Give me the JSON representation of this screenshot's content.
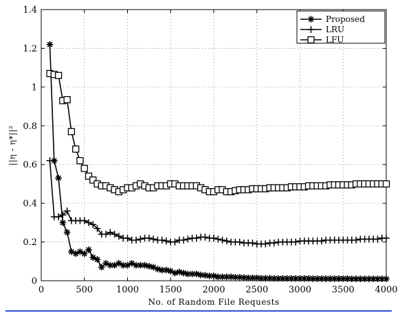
{
  "chart_data": {
    "type": "line",
    "title": "",
    "xlabel": "No. of Random File Requests",
    "ylabel": "||η - η*||²",
    "xlim": [
      0,
      4000
    ],
    "ylim": [
      0,
      1.4
    ],
    "xticks": [
      0,
      500,
      1000,
      1500,
      2000,
      2500,
      3000,
      3500,
      4000
    ],
    "yticks": [
      0,
      0.2,
      0.4,
      0.6,
      0.8,
      1,
      1.2,
      1.4
    ],
    "xtick_labels": [
      "0",
      "500",
      "1000",
      "1500",
      "2000",
      "2500",
      "3000",
      "3500",
      "4000"
    ],
    "ytick_labels": [
      "0",
      "0.2",
      "0.4",
      "0.6",
      "0.8",
      "1",
      "1.2",
      "1.4"
    ],
    "grid": true,
    "legend_position": "top-right",
    "series": [
      {
        "name": "Proposed",
        "marker": "star",
        "x": [
          100,
          150,
          200,
          250,
          300,
          350,
          400,
          450,
          500,
          550,
          600,
          650,
          700,
          750,
          800,
          850,
          900,
          950,
          1000,
          1050,
          1100,
          1150,
          1200,
          1250,
          1300,
          1350,
          1400,
          1450,
          1500,
          1550,
          1600,
          1650,
          1700,
          1750,
          1800,
          1850,
          1900,
          1950,
          2000,
          2050,
          2100,
          2150,
          2200,
          2250,
          2300,
          2350,
          2400,
          2450,
          2500,
          2550,
          2600,
          2650,
          2700,
          2750,
          2800,
          2850,
          2900,
          2950,
          3000,
          3050,
          3100,
          3150,
          3200,
          3250,
          3300,
          3350,
          3400,
          3450,
          3500,
          3550,
          3600,
          3650,
          3700,
          3750,
          3800,
          3850,
          3900,
          3950,
          4000
        ],
        "y": [
          1.22,
          0.62,
          0.53,
          0.3,
          0.25,
          0.15,
          0.14,
          0.15,
          0.14,
          0.16,
          0.12,
          0.11,
          0.07,
          0.09,
          0.08,
          0.08,
          0.09,
          0.08,
          0.08,
          0.09,
          0.08,
          0.08,
          0.08,
          0.075,
          0.07,
          0.06,
          0.055,
          0.055,
          0.05,
          0.04,
          0.045,
          0.04,
          0.035,
          0.035,
          0.035,
          0.03,
          0.028,
          0.025,
          0.025,
          0.02,
          0.02,
          0.02,
          0.02,
          0.018,
          0.018,
          0.016,
          0.015,
          0.015,
          0.015,
          0.013,
          0.013,
          0.013,
          0.012,
          0.012,
          0.012,
          0.012,
          0.012,
          0.012,
          0.012,
          0.012,
          0.012,
          0.011,
          0.011,
          0.011,
          0.011,
          0.011,
          0.011,
          0.011,
          0.011,
          0.011,
          0.01,
          0.01,
          0.01,
          0.01,
          0.01,
          0.01,
          0.01,
          0.01,
          0.01
        ]
      },
      {
        "name": "LRU",
        "marker": "plus",
        "x": [
          100,
          150,
          200,
          250,
          300,
          350,
          400,
          450,
          500,
          550,
          600,
          650,
          700,
          750,
          800,
          850,
          900,
          950,
          1000,
          1050,
          1100,
          1150,
          1200,
          1250,
          1300,
          1350,
          1400,
          1450,
          1500,
          1550,
          1600,
          1650,
          1700,
          1750,
          1800,
          1850,
          1900,
          1950,
          2000,
          2050,
          2100,
          2150,
          2200,
          2250,
          2300,
          2350,
          2400,
          2450,
          2500,
          2550,
          2600,
          2650,
          2700,
          2750,
          2800,
          2850,
          2900,
          2950,
          3000,
          3050,
          3100,
          3150,
          3200,
          3250,
          3300,
          3350,
          3400,
          3450,
          3500,
          3550,
          3600,
          3650,
          3700,
          3750,
          3800,
          3850,
          3900,
          3950,
          4000
        ],
        "y": [
          0.62,
          0.33,
          0.33,
          0.34,
          0.36,
          0.31,
          0.31,
          0.31,
          0.31,
          0.3,
          0.29,
          0.27,
          0.24,
          0.24,
          0.25,
          0.24,
          0.23,
          0.22,
          0.22,
          0.21,
          0.21,
          0.215,
          0.22,
          0.22,
          0.215,
          0.21,
          0.21,
          0.205,
          0.2,
          0.2,
          0.21,
          0.21,
          0.215,
          0.22,
          0.22,
          0.225,
          0.225,
          0.22,
          0.22,
          0.215,
          0.21,
          0.205,
          0.2,
          0.2,
          0.2,
          0.195,
          0.195,
          0.195,
          0.19,
          0.19,
          0.19,
          0.195,
          0.195,
          0.2,
          0.2,
          0.2,
          0.2,
          0.2,
          0.205,
          0.205,
          0.205,
          0.205,
          0.205,
          0.205,
          0.21,
          0.21,
          0.21,
          0.21,
          0.21,
          0.21,
          0.21,
          0.21,
          0.215,
          0.215,
          0.215,
          0.215,
          0.215,
          0.22,
          0.22
        ]
      },
      {
        "name": "LFU",
        "marker": "square",
        "x": [
          100,
          150,
          200,
          250,
          300,
          350,
          400,
          450,
          500,
          550,
          600,
          650,
          700,
          750,
          800,
          850,
          900,
          950,
          1000,
          1050,
          1100,
          1150,
          1200,
          1250,
          1300,
          1350,
          1400,
          1450,
          1500,
          1550,
          1600,
          1650,
          1700,
          1750,
          1800,
          1850,
          1900,
          1950,
          2000,
          2050,
          2100,
          2150,
          2200,
          2250,
          2300,
          2350,
          2400,
          2450,
          2500,
          2550,
          2600,
          2650,
          2700,
          2750,
          2800,
          2850,
          2900,
          2950,
          3000,
          3050,
          3100,
          3150,
          3200,
          3250,
          3300,
          3350,
          3400,
          3450,
          3500,
          3550,
          3600,
          3650,
          3700,
          3750,
          3800,
          3850,
          3900,
          3950,
          4000
        ],
        "y": [
          1.07,
          1.065,
          1.06,
          0.93,
          0.935,
          0.77,
          0.68,
          0.62,
          0.58,
          0.54,
          0.52,
          0.5,
          0.49,
          0.49,
          0.48,
          0.47,
          0.46,
          0.47,
          0.48,
          0.48,
          0.49,
          0.5,
          0.49,
          0.48,
          0.48,
          0.49,
          0.49,
          0.49,
          0.5,
          0.5,
          0.49,
          0.49,
          0.49,
          0.49,
          0.49,
          0.48,
          0.47,
          0.46,
          0.46,
          0.47,
          0.47,
          0.46,
          0.46,
          0.465,
          0.47,
          0.47,
          0.47,
          0.475,
          0.475,
          0.475,
          0.475,
          0.48,
          0.48,
          0.48,
          0.48,
          0.48,
          0.485,
          0.485,
          0.485,
          0.485,
          0.49,
          0.49,
          0.49,
          0.49,
          0.49,
          0.495,
          0.495,
          0.495,
          0.495,
          0.495,
          0.495,
          0.5,
          0.5,
          0.5,
          0.5,
          0.5,
          0.5,
          0.5,
          0.5
        ]
      }
    ]
  }
}
